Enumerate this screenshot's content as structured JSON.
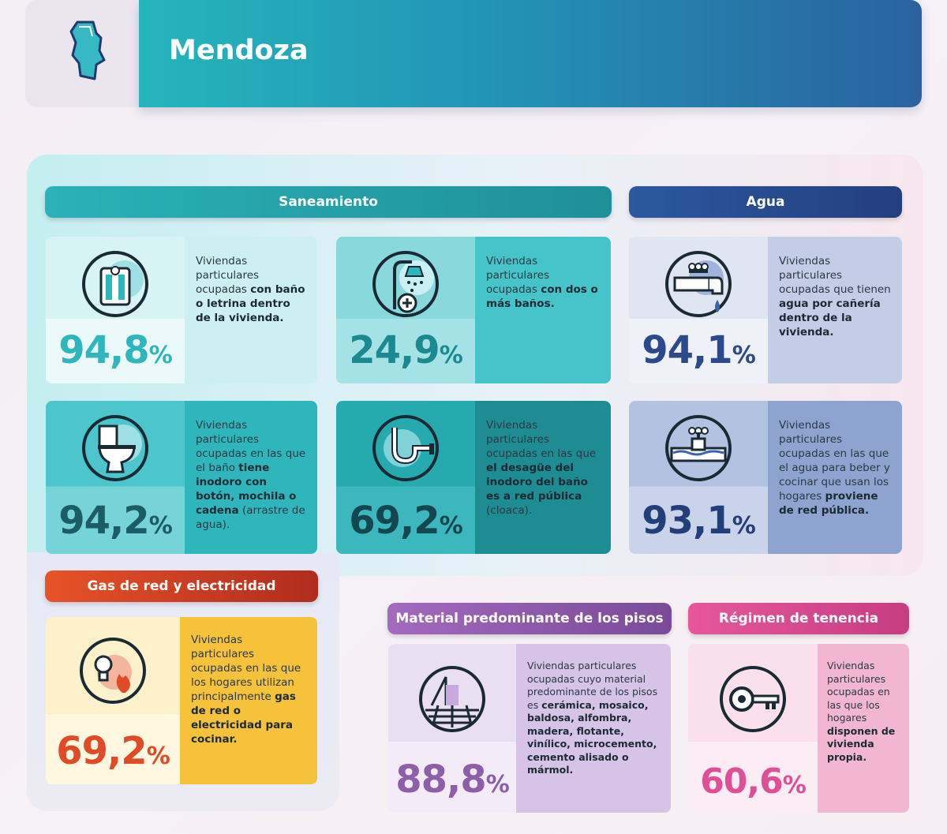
{
  "header": {
    "title": "Mendoza",
    "icon": "province-map-icon"
  },
  "sections": {
    "saneamiento": "Saneamiento",
    "agua": "Agua",
    "gas": "Gas de red y electricidad",
    "pisos": "Material predominante de los pisos",
    "tenencia": "Régimen de tenencia"
  },
  "cards": {
    "bano": {
      "value": "94,8",
      "unit": "%",
      "pre": "Viviendas particulares ocupadas ",
      "bold": "con baño o letrina dentro de la vivienda.",
      "post": "",
      "icon": "bathroom-icon"
    },
    "dos_banos": {
      "value": "24,9",
      "unit": "%",
      "pre": "Viviendas particulares ocupadas ",
      "bold": "con dos o más baños.",
      "post": "",
      "icon": "shower-plus-icon"
    },
    "agua_caneria": {
      "value": "94,1",
      "unit": "%",
      "pre": "Viviendas particulares ocupadas que tienen ",
      "bold": "agua por cañería dentro de la vivienda.",
      "post": "",
      "icon": "faucet-icon"
    },
    "inodoro": {
      "value": "94,2",
      "unit": "%",
      "pre": "Viviendas particulares ocupadas en las que el baño ",
      "bold": "tiene inodoro con botón, mochila o cadena",
      "post": " (arrastre de agua).",
      "icon": "toilet-icon"
    },
    "desague": {
      "value": "69,2",
      "unit": "%",
      "pre": "Viviendas particulares ocupadas en las que ",
      "bold": "el desagüe del inodoro del baño es a red pública",
      "post": " (cloaca).",
      "icon": "drain-pipe-icon"
    },
    "red_publica": {
      "value": "93,1",
      "unit": "%",
      "pre": "Viviendas particulares ocupadas en las que el agua para beber y cocinar que usan los hogares ",
      "bold": "proviene de red pública.",
      "post": "",
      "icon": "water-valve-icon"
    },
    "gas": {
      "value": "69,2",
      "unit": "%",
      "pre": "Viviendas particulares ocupadas en las que los hogares utilizan principalmente ",
      "bold": "gas de red o electricidad para cocinar.",
      "post": "",
      "icon": "bulb-flame-icon"
    },
    "pisos": {
      "value": "88,8",
      "unit": "%",
      "pre": "Viviendas particulares ocupadas cuyo material predominante de los pisos es ",
      "bold": "cerámica, mosaico, baldosa, alfombra, madera, flotante, vinílico, microcemento, cemento alisado o mármol.",
      "post": "",
      "icon": "floor-icon"
    },
    "tenencia": {
      "value": "60,6",
      "unit": "%",
      "pre": "Viviendas particulares ocupadas en las que los hogares ",
      "bold": "disponen de vivienda propia.",
      "post": "",
      "icon": "key-icon"
    }
  },
  "colors": {
    "teal": "#2fb6bd",
    "teal_dark": "#1d8a92",
    "navy": "#2b4a8c",
    "gas": "#e04a26",
    "pisos": "#8e5fa9",
    "tenencia": "#df4f93"
  }
}
